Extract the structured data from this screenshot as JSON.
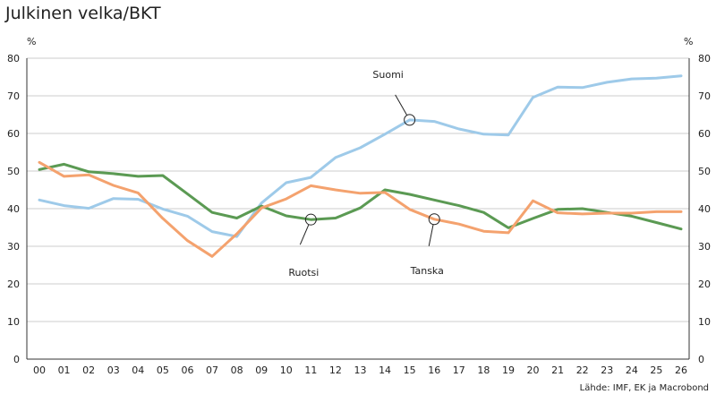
{
  "chart_data": {
    "type": "line",
    "title": "Julkinen velka/BKT",
    "ylabel_left": "%",
    "ylabel_right": "%",
    "ylim": [
      0,
      80
    ],
    "yticks": [
      0,
      10,
      20,
      30,
      40,
      50,
      60,
      70,
      80
    ],
    "categories": [
      "00",
      "01",
      "02",
      "03",
      "04",
      "05",
      "06",
      "07",
      "08",
      "09",
      "10",
      "11",
      "12",
      "13",
      "14",
      "15",
      "16",
      "17",
      "18",
      "19",
      "20",
      "21",
      "22",
      "23",
      "24",
      "25",
      "26"
    ],
    "grid": true,
    "series": [
      {
        "name": "Suomi",
        "color": "#9ecae9",
        "values": [
          42.3,
          40.8,
          40.1,
          42.7,
          42.5,
          39.9,
          38.0,
          33.9,
          32.6,
          41.5,
          46.9,
          48.3,
          53.6,
          56.2,
          59.8,
          63.6,
          63.2,
          61.2,
          59.8,
          59.6,
          69.6,
          72.3,
          72.2,
          73.6,
          74.5,
          74.7,
          75.3
        ]
      },
      {
        "name": "Ruotsi",
        "color": "#5b9a53",
        "values": [
          50.4,
          51.8,
          49.8,
          49.3,
          48.6,
          48.8,
          43.9,
          39.0,
          37.5,
          40.7,
          38.1,
          37.1,
          37.5,
          40.2,
          45.0,
          43.8,
          42.3,
          40.8,
          39.0,
          34.9,
          37.4,
          39.8,
          40.0,
          39.0,
          38.0,
          36.3,
          34.6
        ]
      },
      {
        "name": "Tanska",
        "color": "#f4a26e",
        "values": [
          52.3,
          48.6,
          49.0,
          46.2,
          44.2,
          37.4,
          31.5,
          27.3,
          33.3,
          40.2,
          42.6,
          46.1,
          45.0,
          44.1,
          44.3,
          39.8,
          37.2,
          35.9,
          34.0,
          33.6,
          42.1,
          38.9,
          38.6,
          38.8,
          38.8,
          39.2,
          39.2
        ]
      }
    ],
    "annotations": [
      {
        "label": "Suomi",
        "series": 0,
        "index": 15
      },
      {
        "label": "Ruotsi",
        "series": 1,
        "index": 11
      },
      {
        "label": "Tanska",
        "series": 2,
        "index": 16
      }
    ],
    "source": "Lähde: IMF, EK ja Macrobond"
  }
}
